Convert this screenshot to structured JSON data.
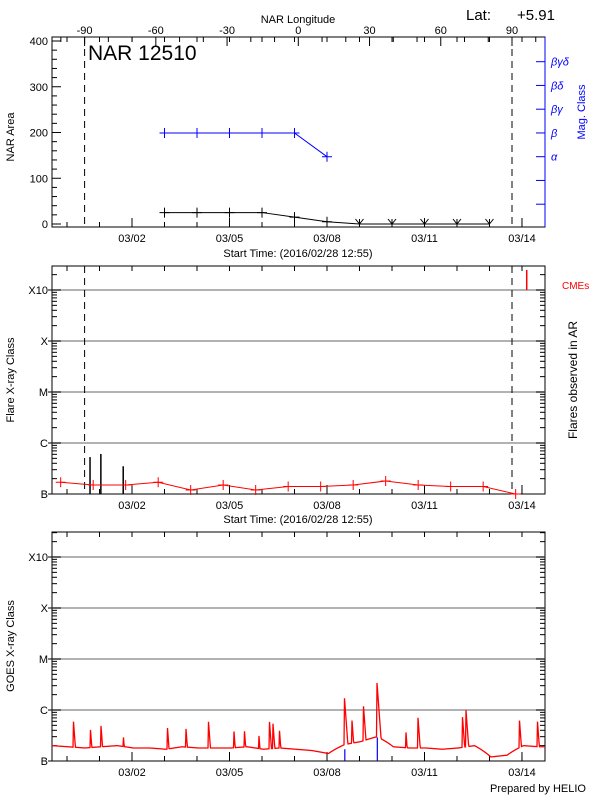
{
  "header": {
    "lat_label": "Lat:",
    "lat_value": "+5.91"
  },
  "colors": {
    "axis": "#000000",
    "mag_class": "#0000ff",
    "flare": "#ff0000",
    "goes": "#ff0000",
    "cme": "#ff0000",
    "grid": "#999999",
    "ar_marker": "#0000ff"
  },
  "footer": {
    "credit": "Prepared by HELIO"
  },
  "chart_data": [
    {
      "type": "line",
      "annotation": "NAR 12510",
      "xlabel": "Start Time: (2016/02/28 12:55)",
      "top_axis_label": "NAR Longitude",
      "top_axis_ticks": [
        "-90",
        "-60",
        "-30",
        "0",
        "30",
        "60",
        "90"
      ],
      "limb_markers_longitude": [
        -90,
        90
      ],
      "ylabel": "NAR Area",
      "ylim": [
        0,
        400
      ],
      "yticks": [
        "0",
        "100",
        "200",
        "300",
        "400"
      ],
      "xlim": [
        "02/28 12:55",
        "03/14 17:00"
      ],
      "xticks": [
        "03/02",
        "03/05",
        "03/08",
        "03/11",
        "03/14"
      ],
      "y2label": "Mag. Class",
      "y2ticks": [
        "α",
        "β",
        "βγ",
        "βδ",
        "βγδ"
      ],
      "series": [
        {
          "x": [
            "03/03 00:00",
            "03/04 00:00",
            "03/05 00:00",
            "03/06 00:00",
            "03/07 00:00",
            "03/08 00:00",
            "03/09 00:00",
            "03/10 00:00",
            "03/11 00:00",
            "03/12 00:00",
            "03/13 00:00"
          ],
          "y": [
            25,
            25,
            25,
            25,
            15,
            5,
            0,
            0,
            0,
            0,
            0
          ],
          "axis": "left"
        },
        {
          "x": [
            "03/03 00:00",
            "03/04 00:00",
            "03/05 00:00",
            "03/06 00:00",
            "03/07 00:00",
            "03/08 00:00"
          ],
          "y": [
            "β",
            "β",
            "β",
            "β",
            "β",
            "α"
          ],
          "axis": "right"
        }
      ]
    },
    {
      "type": "line",
      "xlabel": "Start Time: (2016/02/28 12:55)",
      "ylabel": "Flare X-ray Class",
      "y2label": "Flares observed in AR",
      "yscale": "log",
      "ylim_Wm2": [
        1e-07,
        0.003
      ],
      "yticks": [
        "B",
        "C",
        "M",
        "X",
        "X10"
      ],
      "grid": true,
      "xlim": [
        "02/28 12:55",
        "03/14 17:00"
      ],
      "xticks": [
        "03/02",
        "03/05",
        "03/08",
        "03/11",
        "03/14"
      ],
      "limb_markers_longitude": [
        -90,
        90
      ],
      "series": [
        {
          "x": [
            "02/28 19:20",
            "02/29 19:20",
            "03/01 19:20",
            "03/02 19:20",
            "03/03 19:20",
            "03/04 19:20",
            "03/05 19:20",
            "03/06 19:20",
            "03/07 19:20",
            "03/08 19:20",
            "03/09 19:20",
            "03/10 19:20",
            "03/11 19:20",
            "03/12 19:20",
            "03/13 19:20"
          ],
          "flux_Wm2": [
            1.7e-07,
            1.5e-07,
            1.5e-07,
            1.7e-07,
            1.2e-07,
            1.5e-07,
            1.2e-07,
            1.4e-07,
            1.4e-07,
            1.5e-07,
            1.8e-07,
            1.5e-07,
            1.4e-07,
            1.4e-07,
            1e-07
          ]
        }
      ],
      "flares": [
        {
          "time": "02/29 17:00",
          "flux_Wm2": 5.3e-07
        },
        {
          "time": "03/01 01:00",
          "flux_Wm2": 6.1e-07
        },
        {
          "time": "03/01 17:30",
          "flux_Wm2": 3.5e-07
        }
      ],
      "cme_label": "CMEs",
      "cmes": [
        {
          "time": "03/14 03:30"
        }
      ]
    },
    {
      "type": "line",
      "ylabel": "GOES X-ray Class",
      "yscale": "log",
      "ylim_Wm2": [
        1e-07,
        0.003
      ],
      "yticks": [
        "B",
        "C",
        "M",
        "X",
        "X10"
      ],
      "grid": true,
      "xlim": [
        "02/28 12:55",
        "03/14 17:00"
      ],
      "xticks": [
        "03/02",
        "03/05",
        "03/08",
        "03/11",
        "03/14"
      ],
      "background": {
        "x": [
          "02/28 13:00",
          "02/29 01:00",
          "02/29 13:00",
          "03/01 01:00",
          "03/01 13:00",
          "03/02 01:00",
          "03/02 13:00",
          "03/03 01:00",
          "03/03 13:00",
          "03/04 01:00",
          "03/04 13:00",
          "03/05 01:00",
          "03/05 13:00",
          "03/06 01:00",
          "03/06 13:00",
          "03/07 01:00",
          "03/07 13:00",
          "03/08 01:00",
          "03/08 13:00",
          "03/09 01:00",
          "03/09 13:00",
          "03/10 01:00",
          "03/10 13:00",
          "03/11 01:00",
          "03/11 13:00",
          "03/12 01:00",
          "03/12 13:00",
          "03/13 01:00",
          "03/13 13:00",
          "03/14 01:00",
          "03/14 13:00"
        ],
        "flux_Wm2": [
          2e-07,
          1.9e-07,
          1.8e-07,
          1.9e-07,
          2e-07,
          1.8e-07,
          1.8e-07,
          1.7e-07,
          1.9e-07,
          1.8e-07,
          1.8e-07,
          1.8e-07,
          1.9e-07,
          1.7e-07,
          1.8e-07,
          1.7e-07,
          1.6e-07,
          1.4e-07,
          2.1e-07,
          2.4e-07,
          3e-07,
          1.9e-07,
          1.8e-07,
          1.8e-07,
          1.7e-07,
          1.8e-07,
          2e-07,
          1.2e-07,
          1.3e-07,
          2e-07,
          1.9e-07
        ]
      },
      "peaks": [
        {
          "time": "02/29 04:50",
          "flux_Wm2": 7e-07
        },
        {
          "time": "02/29 17:15",
          "flux_Wm2": 5.4e-07
        },
        {
          "time": "03/01 01:00",
          "flux_Wm2": 6.5e-07
        },
        {
          "time": "03/01 17:40",
          "flux_Wm2": 3.7e-07
        },
        {
          "time": "03/03 02:20",
          "flux_Wm2": 4.9e-07
        },
        {
          "time": "03/03 15:50",
          "flux_Wm2": 5.4e-07
        },
        {
          "time": "03/04 08:40",
          "flux_Wm2": 6.2e-07
        },
        {
          "time": "03/05 03:20",
          "flux_Wm2": 4.6e-07
        },
        {
          "time": "03/05 11:00",
          "flux_Wm2": 5e-07
        },
        {
          "time": "03/05 21:40",
          "flux_Wm2": 4.2e-07
        },
        {
          "time": "03/06 05:30",
          "flux_Wm2": 7.4e-07
        },
        {
          "time": "03/06 08:00",
          "flux_Wm2": 7.3e-07
        },
        {
          "time": "03/06 13:00",
          "flux_Wm2": 4.5e-07
        },
        {
          "time": "03/08 13:10",
          "flux_Wm2": 1.7e-06
        },
        {
          "time": "03/08 18:30",
          "flux_Wm2": 7.4e-07
        },
        {
          "time": "03/09 03:00",
          "flux_Wm2": 1.4e-06
        },
        {
          "time": "03/09 13:10",
          "flux_Wm2": 3.4e-06
        },
        {
          "time": "03/10 10:20",
          "flux_Wm2": 4.5e-07
        },
        {
          "time": "03/10 19:10",
          "flux_Wm2": 8.9e-07
        },
        {
          "time": "03/12 04:00",
          "flux_Wm2": 9.4e-07
        },
        {
          "time": "03/12 06:40",
          "flux_Wm2": 1.2e-06
        },
        {
          "time": "03/13 22:20",
          "flux_Wm2": 6.6e-07
        },
        {
          "time": "03/14 11:30",
          "flux_Wm2": 7e-07
        }
      ],
      "ar_flare_markers": [
        {
          "time": "03/08 13:10",
          "flux_Wm2": 1.7e-07
        },
        {
          "time": "03/09 13:10",
          "flux_Wm2": 2.9e-07
        }
      ]
    }
  ]
}
